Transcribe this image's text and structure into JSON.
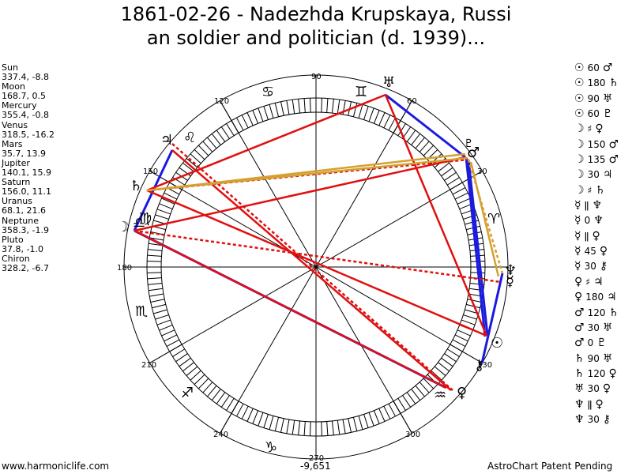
{
  "title": {
    "line1": "1861-02-26 - Nadezhda Krupskaya, Russi",
    "line2": "an soldier and politician (d. 1939)..."
  },
  "planets": [
    {
      "name": "Sun",
      "coords": "337.4, -8.8"
    },
    {
      "name": "Moon",
      "coords": "168.7, 0.5"
    },
    {
      "name": "Mercury",
      "coords": "355.4, -0.8"
    },
    {
      "name": "Venus",
      "coords": "318.5, -16.2"
    },
    {
      "name": "Mars",
      "coords": "35.7, 13.9"
    },
    {
      "name": "Jupiter",
      "coords": "140.1, 15.9"
    },
    {
      "name": "Saturn",
      "coords": "156.0, 11.1"
    },
    {
      "name": "Uranus",
      "coords": "68.1, 21.6"
    },
    {
      "name": "Neptune",
      "coords": "358.3, -1.9"
    },
    {
      "name": "Pluto",
      "coords": "37.8, -1.0"
    },
    {
      "name": "Chiron",
      "coords": "328.2, -6.7"
    }
  ],
  "aspects": [
    {
      "p1": "☉",
      "val": "60",
      "p2": "♂"
    },
    {
      "p1": "☉",
      "val": "180",
      "p2": "♄"
    },
    {
      "p1": "☉",
      "val": "90",
      "p2": "♅"
    },
    {
      "p1": "☉",
      "val": "60",
      "p2": "♇"
    },
    {
      "p1": "☽",
      "val": "♯",
      "p2": "♀"
    },
    {
      "p1": "☽",
      "val": "150",
      "p2": "♂"
    },
    {
      "p1": "☽",
      "val": "135",
      "p2": "♂"
    },
    {
      "p1": "☽",
      "val": "30",
      "p2": "♃"
    },
    {
      "p1": "☽",
      "val": "♯",
      "p2": "♄"
    },
    {
      "p1": "☿",
      "val": "ǁ",
      "p2": "♆"
    },
    {
      "p1": "☿",
      "val": "0",
      "p2": "♆"
    },
    {
      "p1": "☿",
      "val": "ǁ",
      "p2": "♀"
    },
    {
      "p1": "☿",
      "val": "45",
      "p2": "♀"
    },
    {
      "p1": "☿",
      "val": "30",
      "p2": "⚷"
    },
    {
      "p1": "♀",
      "val": "♯",
      "p2": "♃"
    },
    {
      "p1": "♀",
      "val": "180",
      "p2": "♃"
    },
    {
      "p1": "♂",
      "val": "120",
      "p2": "♄"
    },
    {
      "p1": "♂",
      "val": "30",
      "p2": "♅"
    },
    {
      "p1": "♂",
      "val": "0",
      "p2": "♇"
    },
    {
      "p1": "♄",
      "val": "90",
      "p2": "♅"
    },
    {
      "p1": "♄",
      "val": "120",
      "p2": "♀"
    },
    {
      "p1": "♅",
      "val": "30",
      "p2": "♀"
    },
    {
      "p1": "♆",
      "val": "ǁ",
      "p2": "♀"
    },
    {
      "p1": "♆",
      "val": "30",
      "p2": "⚷"
    }
  ],
  "degree_labels": [
    "90",
    "60",
    "30",
    "120",
    "150",
    "180",
    "210",
    "240",
    "270",
    "300",
    "330"
  ],
  "footer": {
    "left": "www.harmoniclife.com",
    "mid": "-9,651",
    "right": "AstroChart Patent Pending"
  },
  "colors": {
    "red": "#e01010",
    "blue": "#1a1ae0",
    "gold": "#d4a030"
  },
  "chart_glyphs": {
    "uranus": "♅",
    "mars": "♂",
    "pluto": "♇",
    "aries": "♈",
    "neptune": "♆",
    "mercury": "☿",
    "sun": "☉",
    "chiron": "⚷",
    "venus": "♀",
    "aquarius": "♒",
    "capricorn": "♑",
    "sagittarius": "♐",
    "scorpio": "♏",
    "libra": "♎",
    "virgo": "♍",
    "moon": "☽",
    "saturn": "♄",
    "jupiter": "♃",
    "leo": "♌",
    "cancer": "♋",
    "gemini": "♊"
  }
}
